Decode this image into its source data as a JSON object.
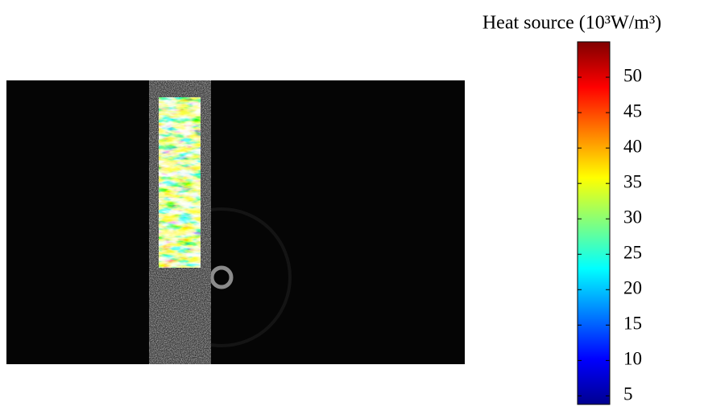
{
  "chart_data": {
    "type": "colorbar",
    "title": "Heat source (10³W/m³)",
    "ylim": [
      3.8,
      55
    ],
    "yticks": [
      5,
      10,
      15,
      20,
      25,
      30,
      35,
      40,
      45,
      50
    ],
    "colormap": "jet"
  }
}
